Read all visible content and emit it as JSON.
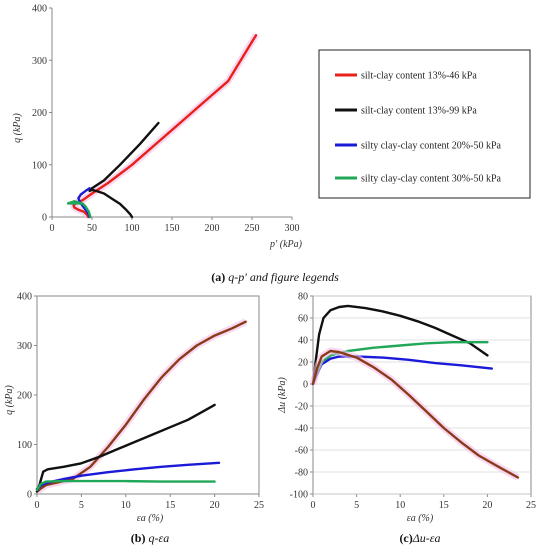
{
  "colors": {
    "red": "#e8201a",
    "black": "#111111",
    "blue": "#1a1ad8",
    "green": "#20a858",
    "brown": "#8b3a1a"
  },
  "captions": {
    "a": {
      "bold": "(a)",
      "text": " q-p′ and figure legends"
    },
    "b": {
      "bold": "(b)",
      "text": " q-εa"
    },
    "c": {
      "bold": "(c)",
      "text": "Δu-εa"
    }
  },
  "legend": {
    "entries": [
      {
        "label": "silt-clay content 13%-46 kPa",
        "color": "#e8201a"
      },
      {
        "label": "silt-clay content 13%-99 kPa",
        "color": "#111111"
      },
      {
        "label": "silty clay-clay content 20%-50 kPa",
        "color": "#1a1ad8"
      },
      {
        "label": "silty clay-clay content 30%-50 kPa",
        "color": "#20a858"
      }
    ]
  },
  "chart_data": [
    {
      "id": "a",
      "type": "line",
      "xlabel": "p′ (kPa)",
      "ylabel": "q (kPa)",
      "xlim": [
        0,
        300
      ],
      "ylim": [
        0,
        400
      ],
      "xticks": [
        0,
        50,
        100,
        150,
        200,
        250,
        300
      ],
      "yticks": [
        0,
        100,
        200,
        300,
        400
      ],
      "series": [
        {
          "color": "#e8201a",
          "points": [
            [
              45,
              0
            ],
            [
              44,
              4
            ],
            [
              40,
              10
            ],
            [
              33,
              14
            ],
            [
              28,
              18
            ],
            [
              27,
              22
            ],
            [
              30,
              27
            ],
            [
              38,
              32
            ],
            [
              50,
              45
            ],
            [
              70,
              65
            ],
            [
              100,
              100
            ],
            [
              130,
              140
            ],
            [
              160,
              180
            ],
            [
              190,
              220
            ],
            [
              220,
              260
            ],
            [
              255,
              348
            ]
          ]
        },
        {
          "color": "#111111",
          "points": [
            [
              100,
              0
            ],
            [
              98,
              5
            ],
            [
              92,
              15
            ],
            [
              85,
              25
            ],
            [
              75,
              35
            ],
            [
              65,
              45
            ],
            [
              55,
              50
            ],
            [
              50,
              52
            ],
            [
              47,
              50
            ],
            [
              50,
              55
            ],
            [
              65,
              70
            ],
            [
              85,
              100
            ],
            [
              110,
              140
            ],
            [
              133,
              180
            ]
          ]
        },
        {
          "color": "#1a1ad8",
          "points": [
            [
              47,
              0
            ],
            [
              45,
              8
            ],
            [
              40,
              18
            ],
            [
              35,
              28
            ],
            [
              33,
              36
            ],
            [
              36,
              43
            ],
            [
              42,
              50
            ],
            [
              47,
              55
            ]
          ]
        },
        {
          "color": "#20a858",
          "points": [
            [
              48,
              0
            ],
            [
              46,
              10
            ],
            [
              42,
              20
            ],
            [
              38,
              26
            ],
            [
              28,
              26
            ],
            [
              20,
              26
            ],
            [
              28,
              30
            ],
            [
              35,
              27
            ]
          ]
        }
      ]
    },
    {
      "id": "b",
      "type": "line",
      "xlabel": "εa (%)",
      "ylabel": "q (kPa)",
      "xlim": [
        0,
        25
      ],
      "ylim": [
        0,
        400
      ],
      "xticks": [
        0,
        5,
        10,
        15,
        20,
        25
      ],
      "yticks": [
        0,
        100,
        200,
        300,
        400
      ],
      "series": [
        {
          "color": "#8b3a1a",
          "points": [
            [
              0,
              5
            ],
            [
              0.5,
              12
            ],
            [
              1,
              18
            ],
            [
              2,
              22
            ],
            [
              4,
              30
            ],
            [
              6,
              55
            ],
            [
              8,
              95
            ],
            [
              10,
              140
            ],
            [
              12,
              190
            ],
            [
              14,
              235
            ],
            [
              16,
              272
            ],
            [
              18,
              300
            ],
            [
              20,
              320
            ],
            [
              22,
              335
            ],
            [
              23.5,
              348
            ]
          ]
        },
        {
          "color": "#111111",
          "points": [
            [
              0,
              5
            ],
            [
              0.3,
              20
            ],
            [
              0.7,
              45
            ],
            [
              1.2,
              50
            ],
            [
              3,
              55
            ],
            [
              5,
              62
            ],
            [
              7,
              75
            ],
            [
              9,
              90
            ],
            [
              11,
              105
            ],
            [
              13,
              120
            ],
            [
              15,
              135
            ],
            [
              17,
              150
            ],
            [
              19,
              170
            ],
            [
              20,
              180
            ]
          ]
        },
        {
          "color": "#1a1ad8",
          "points": [
            [
              0,
              10
            ],
            [
              0.5,
              18
            ],
            [
              1,
              22
            ],
            [
              3,
              30
            ],
            [
              5,
              37
            ],
            [
              8,
              44
            ],
            [
              11,
              50
            ],
            [
              14,
              55
            ],
            [
              17,
              59
            ],
            [
              20.5,
              63
            ]
          ]
        },
        {
          "color": "#20a858",
          "points": [
            [
              0,
              8
            ],
            [
              0.4,
              20
            ],
            [
              1,
              25
            ],
            [
              3,
              26
            ],
            [
              6,
              26
            ],
            [
              10,
              26
            ],
            [
              14,
              25
            ],
            [
              18,
              25
            ],
            [
              20,
              25
            ]
          ]
        }
      ]
    },
    {
      "id": "c",
      "type": "line",
      "xlabel": "εa (%)",
      "ylabel": "Δu (kPa)",
      "xlim": [
        0,
        25
      ],
      "ylim": [
        -100,
        80
      ],
      "xticks": [
        0,
        5,
        10,
        15,
        20,
        25
      ],
      "yticks": [
        -100,
        -80,
        -60,
        -40,
        -20,
        0,
        20,
        40,
        60,
        80
      ],
      "series": [
        {
          "color": "#111111",
          "points": [
            [
              0,
              0
            ],
            [
              0.3,
              20
            ],
            [
              0.7,
              45
            ],
            [
              1.2,
              60
            ],
            [
              2,
              67
            ],
            [
              3,
              70
            ],
            [
              4,
              71
            ],
            [
              6,
              69
            ],
            [
              8,
              66
            ],
            [
              10,
              62
            ],
            [
              12,
              57
            ],
            [
              14,
              51
            ],
            [
              16,
              44
            ],
            [
              18,
              37
            ],
            [
              20,
              26
            ]
          ]
        },
        {
          "color": "#1a1ad8",
          "points": [
            [
              0,
              0
            ],
            [
              0.4,
              8
            ],
            [
              1,
              18
            ],
            [
              2,
              23
            ],
            [
              3,
              25
            ],
            [
              5,
              25
            ],
            [
              8,
              24
            ],
            [
              11,
              22
            ],
            [
              14,
              19
            ],
            [
              17,
              17
            ],
            [
              20.5,
              14
            ]
          ]
        },
        {
          "color": "#20a858",
          "points": [
            [
              0,
              0
            ],
            [
              0.4,
              10
            ],
            [
              1,
              20
            ],
            [
              2,
              26
            ],
            [
              4,
              30
            ],
            [
              7,
              33
            ],
            [
              10,
              35
            ],
            [
              13,
              37
            ],
            [
              16,
              38
            ],
            [
              20,
              38
            ]
          ]
        },
        {
          "color": "#8b3a1a",
          "points": [
            [
              0,
              0
            ],
            [
              0.5,
              15
            ],
            [
              1,
              25
            ],
            [
              2,
              30
            ],
            [
              3,
              29
            ],
            [
              5,
              24
            ],
            [
              7,
              15
            ],
            [
              9,
              4
            ],
            [
              11,
              -10
            ],
            [
              13,
              -25
            ],
            [
              15,
              -40
            ],
            [
              17,
              -53
            ],
            [
              19,
              -65
            ],
            [
              21,
              -74
            ],
            [
              23.5,
              -85
            ]
          ]
        }
      ]
    }
  ]
}
